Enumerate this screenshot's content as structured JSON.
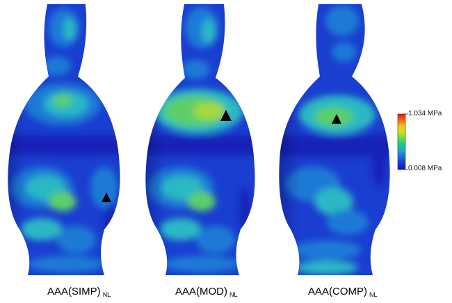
{
  "models": [
    {
      "name": "AAA(SIMP)",
      "subscript": "NL"
    },
    {
      "name": "AAA(MOD)",
      "subscript": "NL"
    },
    {
      "name": "AAA(COMP)",
      "subscript": "NL"
    }
  ],
  "colorbar": {
    "max_label": "1.034 MPa",
    "min_label": "0.008 MPa",
    "colors": [
      "#e01b1b",
      "#f06a15",
      "#f2c71e",
      "#c8e323",
      "#63d94d",
      "#27c38b",
      "#1fa6c9",
      "#1d6fd8",
      "#1a39c9",
      "#1a14b5"
    ]
  },
  "marker_icon": "black-triangle-marker",
  "palette": {
    "base": "#1a3ed0",
    "deep": "#1420b8",
    "mid": "#1f7ad6",
    "cyan": "#2bb8c4",
    "green": "#5ccf6a",
    "yellowgreen": "#a8d83a"
  }
}
